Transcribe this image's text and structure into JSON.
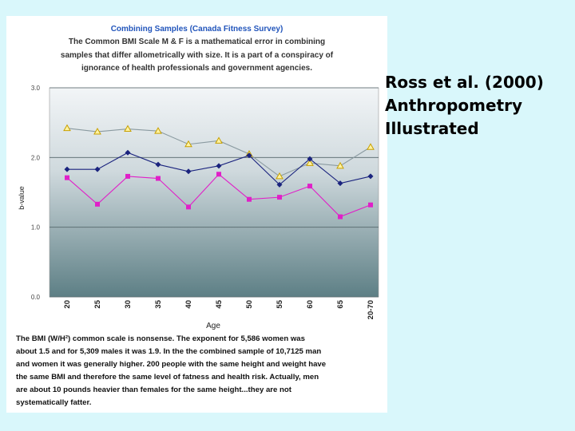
{
  "side_title": {
    "line1": "Ross et al. (2000)",
    "line2": "Anthropometry",
    "line3": "Illustrated"
  },
  "slide_image": {
    "title_lines": [
      "Combining Samples (Canada Fitness Survey)",
      "The Common BMI Scale M & F is a mathematical error in combining",
      "samples that differ allometrically with size.  It is a part of a conspiracy of",
      "ignorance of health professionals and government agencies."
    ],
    "note_lines": [
      "The BMI (W/H²) common scale is nonsense.  The exponent for 5,586  women was",
      "about 1.5 and for 5,309 males it was 1.9.  In the the combined sample of 10,7125 man",
      "and women it was generally higher.  200 people with the same height and weight have",
      "the same BMI and therefore the same level of fatness and health risk.  Actually, men",
      "are about 10 pounds heavier than females for the same height...they are not",
      "systematically fatter."
    ]
  },
  "chart_data": {
    "type": "line",
    "xlabel": "Age",
    "ylabel": "b-value",
    "ylim": [
      0.0,
      3.0
    ],
    "yticks": [
      "0.0",
      "1.0",
      "2.0",
      "3.0"
    ],
    "categories": [
      "20",
      "25",
      "30",
      "35",
      "40",
      "45",
      "50",
      "55",
      "60",
      "65",
      "20-70"
    ],
    "grid": true,
    "series": [
      {
        "marker": "triangle",
        "color": "#c8a000",
        "values": [
          2.42,
          2.37,
          2.41,
          2.38,
          2.19,
          2.24,
          2.05,
          1.73,
          1.92,
          1.88,
          2.15
        ]
      },
      {
        "marker": "diamond",
        "color": "#1a237e",
        "values": [
          1.83,
          1.83,
          2.07,
          1.9,
          1.8,
          1.88,
          2.03,
          1.61,
          1.98,
          1.63,
          1.73
        ]
      },
      {
        "marker": "square",
        "color": "#e020c8",
        "values": [
          1.71,
          1.33,
          1.73,
          1.7,
          1.29,
          1.76,
          1.4,
          1.43,
          1.59,
          1.15,
          1.32
        ]
      }
    ]
  }
}
